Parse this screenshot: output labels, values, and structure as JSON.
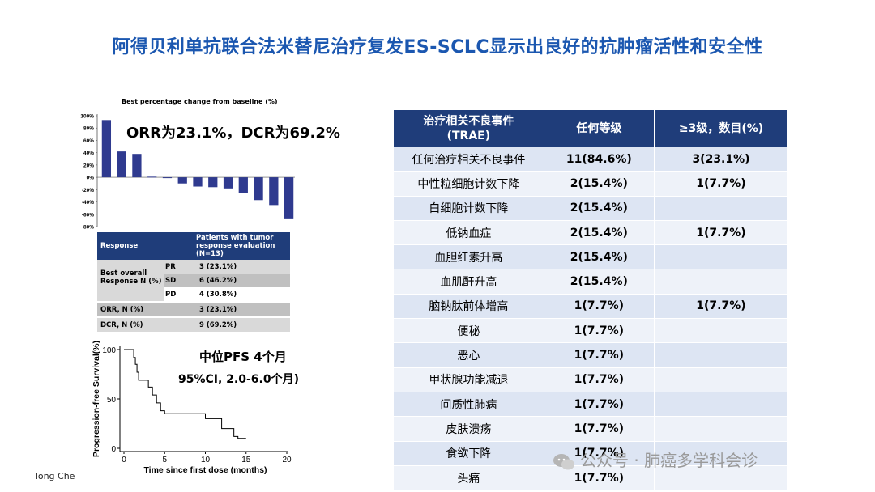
{
  "title": "阿得贝利单抗联合法米替尼治疗复发ES-SCLC显示出良好的抗肿瘤活性和安全性",
  "waterfall": {
    "title": "Best percentage change from baseline (%)",
    "note": "ORR为23.1%，DCR为69.2%"
  },
  "response_table": {
    "header": [
      "Response",
      "Patients with tumor response evaluation (N=13)"
    ],
    "best_overall": "Best overall Response N (%)",
    "rows": [
      {
        "label": "PR",
        "value": "3 (23.1%)"
      },
      {
        "label": "SD",
        "value": "6 (46.2%)"
      },
      {
        "label": "PD",
        "value": "4 (30.8%)"
      },
      {
        "label": "ORR, N (%)",
        "value": "3 (23.1%)"
      },
      {
        "label": "DCR, N (%)",
        "value": "9 (69.2%)"
      }
    ]
  },
  "km": {
    "pfs_median": "中位PFS 4个月",
    "pfs_ci": "95%CI, 2.0-6.0个月)"
  },
  "footer": "Tong Che",
  "trae_table": {
    "headers": [
      "治疗相关不良事件\n(TRAE)",
      "任何等级",
      "≥3级，数目(%)"
    ],
    "rows": [
      [
        "任何治疗相关不良事件",
        "11(84.6%)",
        "3(23.1%)"
      ],
      [
        "中性粒细胞计数下降",
        "2(15.4%)",
        "1(7.7%)"
      ],
      [
        "白细胞计数下降",
        "2(15.4%)",
        ""
      ],
      [
        "低钠血症",
        "2(15.4%)",
        "1(7.7%)"
      ],
      [
        "血胆红素升高",
        "2(15.4%)",
        ""
      ],
      [
        "血肌酐升高",
        "2(15.4%)",
        ""
      ],
      [
        "脑钠肽前体增高",
        "1(7.7%)",
        "1(7.7%)"
      ],
      [
        "便秘",
        "1(7.7%)",
        ""
      ],
      [
        "恶心",
        "1(7.7%)",
        ""
      ],
      [
        "甲状腺功能减退",
        "1(7.7%)",
        ""
      ],
      [
        "间质性肺病",
        "1(7.7%)",
        ""
      ],
      [
        "皮肤溃疡",
        "1(7.7%)",
        ""
      ],
      [
        "食欲下降",
        "1(7.7%)",
        ""
      ],
      [
        "头痛",
        "1(7.7%)",
        ""
      ]
    ]
  },
  "watermark": "公众号 · 肺癌多学科会诊",
  "chart_data": [
    {
      "type": "bar",
      "title": "Best percentage change from baseline (%)",
      "values": [
        93,
        42,
        38,
        1,
        0,
        -10,
        -15,
        -16,
        -18,
        -25,
        -37,
        -45,
        -68
      ],
      "ylim": [
        -80,
        100
      ],
      "yticks": [
        "100%",
        "80%",
        "60%",
        "40%",
        "20%",
        "0%",
        "-20%",
        "-40%",
        "-60%",
        "-80%"
      ],
      "color": "#2f3a8f"
    },
    {
      "type": "line",
      "xlabel": "Time since first dose (months)",
      "ylabel": "Progression-free Survival(%)",
      "xlim": [
        0,
        20
      ],
      "ylim": [
        0,
        100
      ],
      "xticks": [
        "0",
        "5",
        "10",
        "15",
        "20"
      ],
      "yticks": [
        "0",
        "50",
        "100"
      ],
      "steps": [
        [
          0,
          100
        ],
        [
          1.2,
          100
        ],
        [
          1.2,
          92
        ],
        [
          1.4,
          92
        ],
        [
          1.4,
          85
        ],
        [
          1.6,
          85
        ],
        [
          1.6,
          77
        ],
        [
          1.8,
          77
        ],
        [
          1.8,
          69
        ],
        [
          3,
          69
        ],
        [
          3,
          62
        ],
        [
          3.5,
          62
        ],
        [
          3.5,
          54
        ],
        [
          4,
          54
        ],
        [
          4,
          46
        ],
        [
          4.5,
          46
        ],
        [
          4.5,
          38
        ],
        [
          5,
          38
        ],
        [
          5,
          35
        ],
        [
          10,
          35
        ],
        [
          10,
          30
        ],
        [
          12,
          30
        ],
        [
          12,
          20
        ],
        [
          13.5,
          20
        ],
        [
          13.5,
          12
        ],
        [
          14,
          12
        ],
        [
          14,
          10
        ],
        [
          15,
          10
        ]
      ],
      "color": "#000000"
    }
  ]
}
